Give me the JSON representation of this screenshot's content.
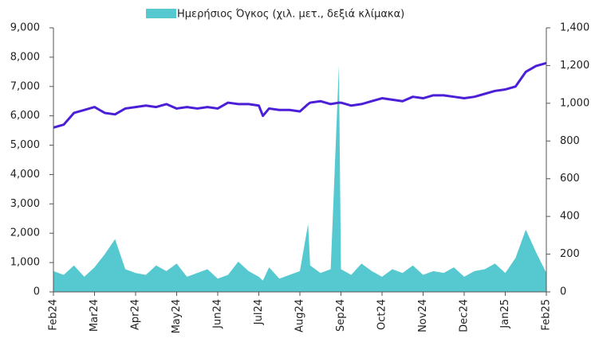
{
  "chart_data": {
    "type": "line",
    "legend": {
      "position": "top"
    },
    "x": [
      0,
      0.25,
      0.5,
      0.75,
      1,
      1.25,
      1.5,
      1.75,
      2,
      2.25,
      2.5,
      2.75,
      3,
      3.25,
      3.5,
      3.75,
      4,
      4.25,
      4.5,
      4.75,
      5,
      5.1,
      5.25,
      5.5,
      5.75,
      6,
      6.2,
      6.25,
      6.5,
      6.75,
      6.95,
      7,
      7.25,
      7.5,
      7.75,
      8,
      8.25,
      8.5,
      8.75,
      9,
      9.25,
      9.5,
      9.75,
      10,
      10.25,
      10.5,
      10.75,
      11,
      11.25,
      11.5,
      11.75,
      12
    ],
    "series": [
      {
        "color": "#4b1fd8",
        "values": [
          5600,
          5700,
          6100,
          6200,
          6300,
          6100,
          6050,
          6250,
          6300,
          6350,
          6300,
          6400,
          6250,
          6300,
          6250,
          6300,
          6250,
          6450,
          6400,
          6400,
          6350,
          6000,
          6250,
          6200,
          6200,
          6150,
          6400,
          6450,
          6500,
          6400,
          6450,
          6450,
          6350,
          6400,
          6500,
          6600,
          6550,
          6500,
          6650,
          6600,
          6700,
          6700,
          6650,
          6600,
          6650,
          6750,
          6850,
          6900,
          7000,
          7500,
          7700,
          7800
        ]
      },
      {
        "name": "Ημερήσιος Όγκος (χιλ. μετ., δεξιά κλίμακα)",
        "color": "#55c9cf",
        "axis": "y2",
        "values": [
          110,
          90,
          140,
          80,
          130,
          200,
          280,
          120,
          100,
          90,
          140,
          110,
          150,
          80,
          100,
          120,
          70,
          90,
          160,
          110,
          80,
          60,
          130,
          70,
          90,
          110,
          360,
          140,
          100,
          120,
          1200,
          120,
          90,
          150,
          110,
          80,
          120,
          100,
          140,
          90,
          110,
          100,
          130,
          80,
          110,
          120,
          150,
          100,
          180,
          330,
          210,
          100
        ]
      }
    ],
    "ylim": [
      0,
      9000
    ],
    "yticks": [
      0,
      {
        "value": 1000,
        "label": "1,000"
      },
      {
        "value": 2000,
        "label": "2,000"
      },
      {
        "value": 3000,
        "label": "3,000"
      },
      {
        "value": 4000,
        "label": "4,000"
      },
      {
        "value": 5000,
        "label": "5,000"
      },
      {
        "value": 6000,
        "label": "6,000"
      },
      {
        "value": 7000,
        "label": "7,000"
      },
      {
        "value": 8000,
        "label": "8,000"
      },
      {
        "value": 9000,
        "label": "9,000"
      }
    ],
    "y2lim": [
      0,
      1400
    ],
    "y2ticks": [
      0,
      200,
      400,
      600,
      800,
      {
        "value": 1000,
        "label": "1,000"
      },
      {
        "value": 1200,
        "label": "1,200"
      },
      {
        "value": 1400,
        "label": "1,400"
      }
    ],
    "xlim": [
      0,
      12
    ],
    "xticks": [
      {
        "value": 0,
        "label": "Feb24"
      },
      {
        "value": 1,
        "label": "Mar24"
      },
      {
        "value": 2,
        "label": "Apr24"
      },
      {
        "value": 3,
        "label": "May24"
      },
      {
        "value": 4,
        "label": "Jun24"
      },
      {
        "value": 5,
        "label": "Jul24"
      },
      {
        "value": 6,
        "label": "Aug24"
      },
      {
        "value": 7,
        "label": "Sep24"
      },
      {
        "value": 8,
        "label": "Oct24"
      },
      {
        "value": 9,
        "label": "Nov24"
      },
      {
        "value": 10,
        "label": "Dec24"
      },
      {
        "value": 11,
        "label": "Jan25"
      },
      {
        "value": 12,
        "label": "Feb25"
      }
    ]
  }
}
